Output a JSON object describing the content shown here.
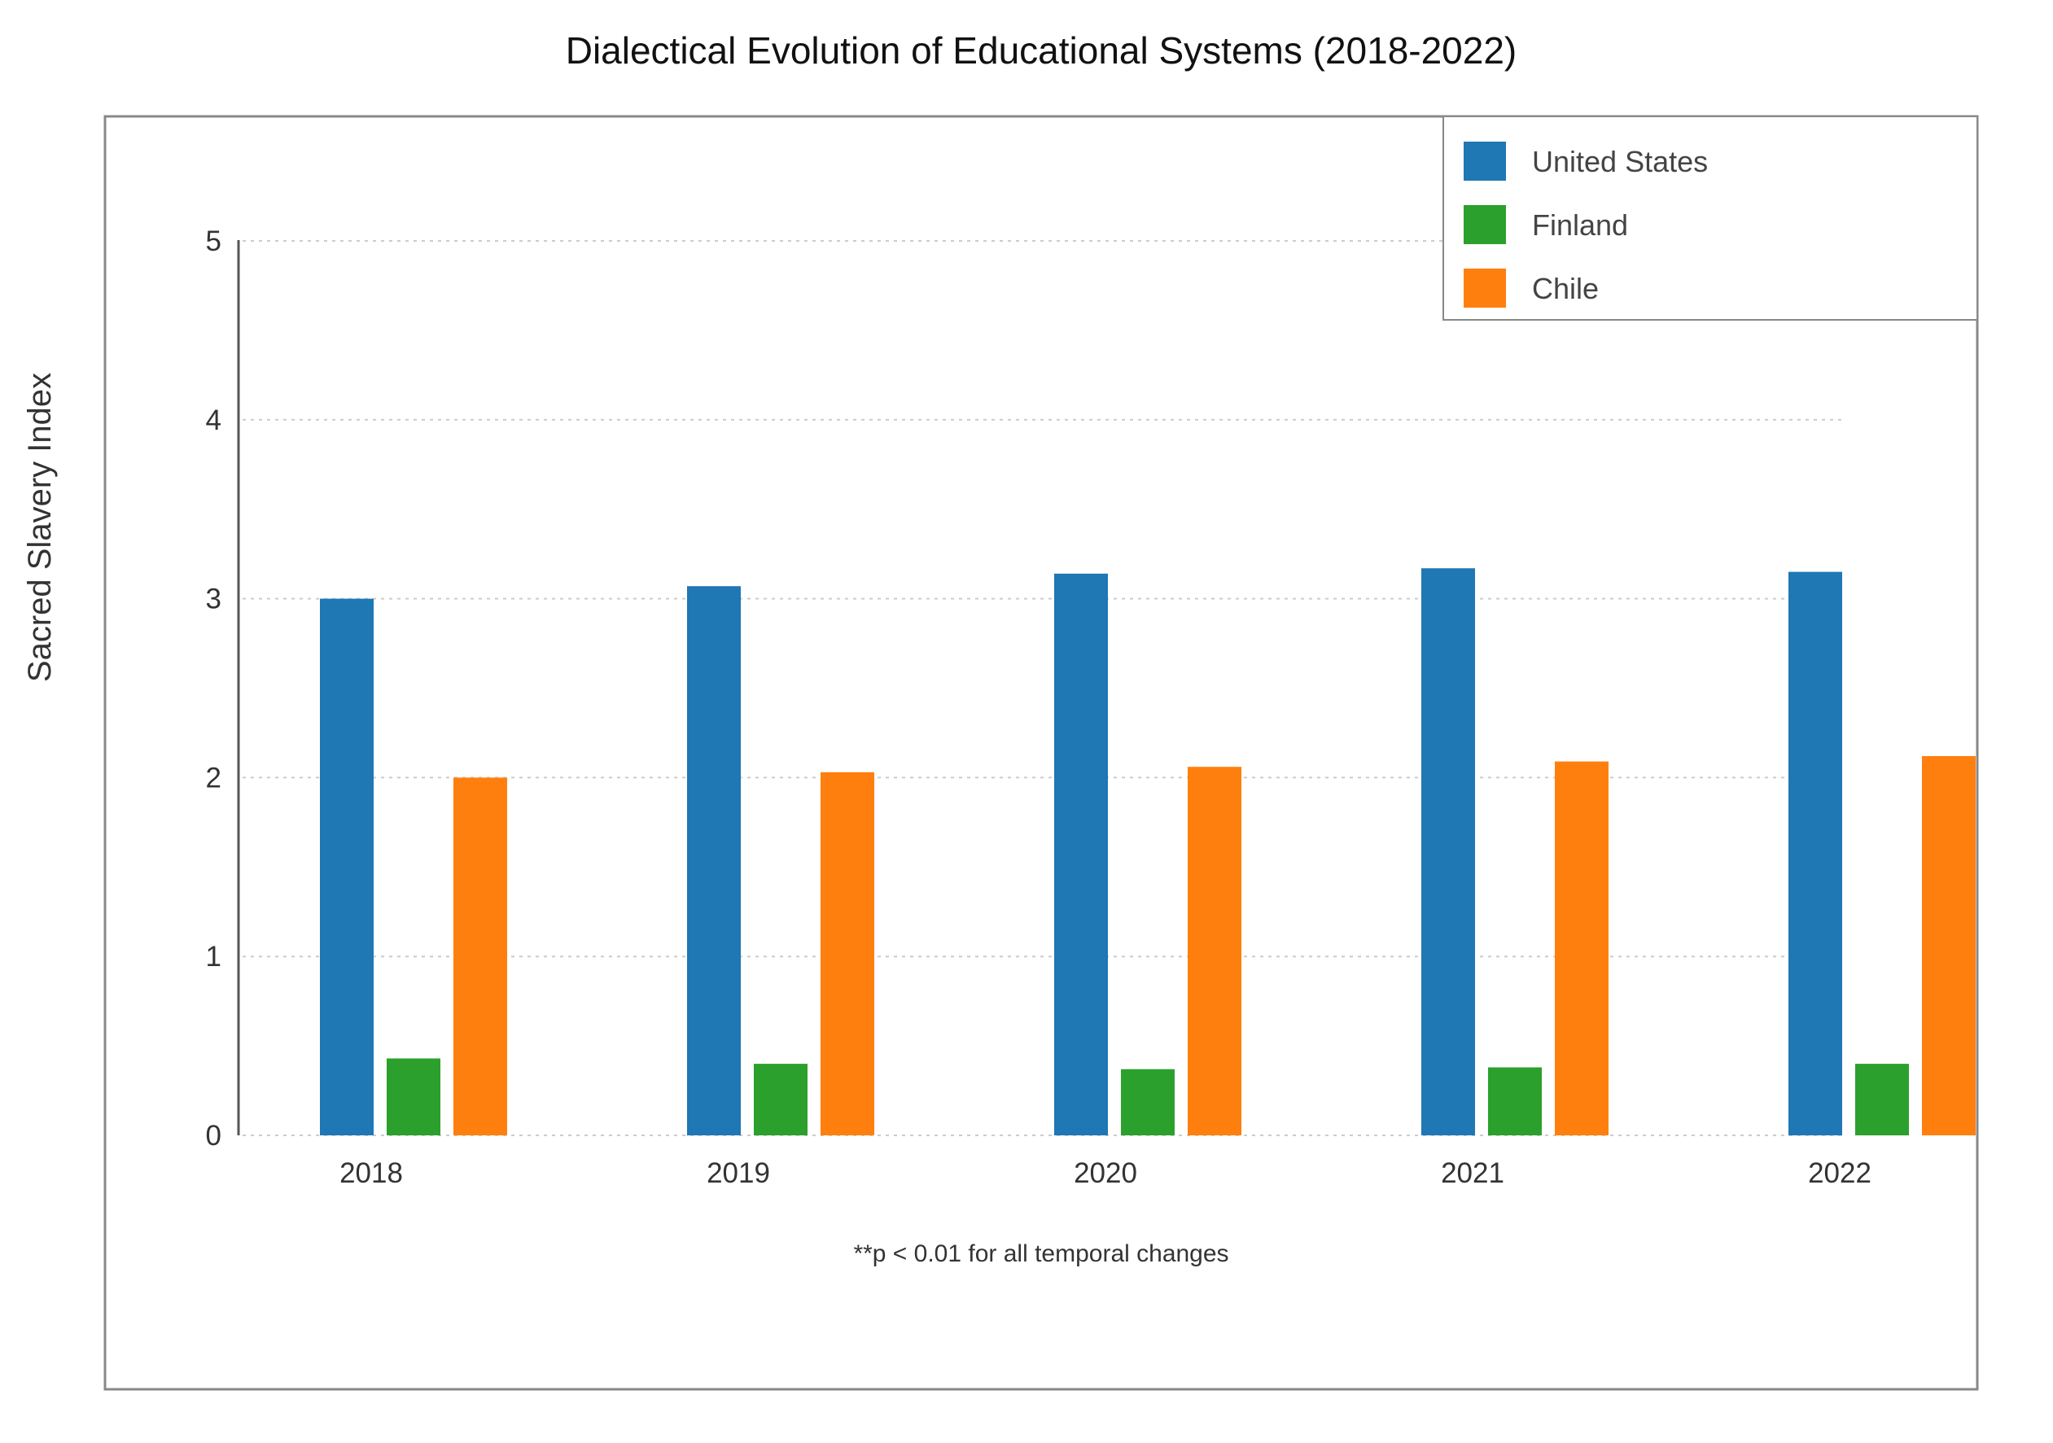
{
  "chart_data": {
    "type": "bar",
    "title": "Dialectical Evolution of Educational Systems (2018-2022)",
    "xlabel": "",
    "ylabel": "Sacred Slavery Index",
    "categories": [
      "2018",
      "2019",
      "2020",
      "2021",
      "2022"
    ],
    "series": [
      {
        "name": "United States",
        "color": "#1f77b4",
        "values": [
          3.0,
          3.07,
          3.14,
          3.17,
          3.15
        ]
      },
      {
        "name": "Finland",
        "color": "#2ca02c",
        "values": [
          0.43,
          0.4,
          0.37,
          0.38,
          0.4
        ]
      },
      {
        "name": "Chile",
        "color": "#ff7f0e",
        "values": [
          2.0,
          2.03,
          2.06,
          2.09,
          2.12
        ]
      }
    ],
    "ylim": [
      0,
      5
    ],
    "yticks": [
      "0",
      "1",
      "2",
      "3",
      "4",
      "5"
    ],
    "grid": true,
    "legend_position": "top-right",
    "annotation": "**p < 0.01 for all temporal changes"
  }
}
